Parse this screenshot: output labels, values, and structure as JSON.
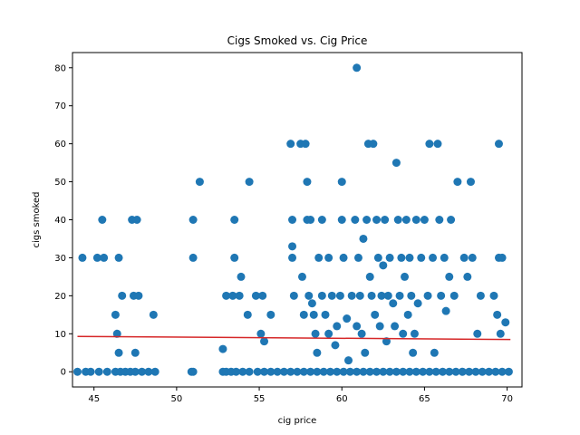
{
  "chart_data": {
    "type": "scatter",
    "title": "Cigs Smoked vs. Cig Price",
    "xlabel": "cig price",
    "ylabel": "cigs smoked",
    "xlim": [
      43.7,
      70.9
    ],
    "ylim": [
      -4,
      84
    ],
    "xticks": [
      45,
      50,
      55,
      60,
      65,
      70
    ],
    "yticks": [
      0,
      10,
      20,
      30,
      40,
      50,
      60,
      70,
      80
    ],
    "grid": false,
    "colors": {
      "points": "#1f77b4",
      "fit_line": "#d62728"
    },
    "series": [
      {
        "points": [
          [
            44.0,
            0
          ],
          [
            44.5,
            0
          ],
          [
            44.8,
            0
          ],
          [
            45.3,
            0
          ],
          [
            45.8,
            0
          ],
          [
            46.3,
            0
          ],
          [
            46.6,
            0
          ],
          [
            46.9,
            0
          ],
          [
            47.2,
            0
          ],
          [
            47.5,
            0
          ],
          [
            47.9,
            0
          ],
          [
            48.3,
            0
          ],
          [
            48.7,
            0
          ],
          [
            50.9,
            0
          ],
          [
            51.0,
            0
          ],
          [
            52.8,
            0
          ],
          [
            53.0,
            0
          ],
          [
            53.3,
            0
          ],
          [
            53.6,
            0
          ],
          [
            54.0,
            0
          ],
          [
            54.4,
            0
          ],
          [
            54.9,
            0
          ],
          [
            55.3,
            0
          ],
          [
            55.7,
            0
          ],
          [
            56.1,
            0
          ],
          [
            56.5,
            0
          ],
          [
            56.9,
            0
          ],
          [
            57.3,
            0
          ],
          [
            57.7,
            0
          ],
          [
            58.1,
            0
          ],
          [
            58.5,
            0
          ],
          [
            58.9,
            0
          ],
          [
            59.3,
            0
          ],
          [
            59.7,
            0
          ],
          [
            60.1,
            0
          ],
          [
            60.5,
            0
          ],
          [
            60.9,
            0
          ],
          [
            61.3,
            0
          ],
          [
            61.7,
            0
          ],
          [
            62.1,
            0
          ],
          [
            62.5,
            0
          ],
          [
            62.9,
            0
          ],
          [
            63.3,
            0
          ],
          [
            63.7,
            0
          ],
          [
            64.1,
            0
          ],
          [
            64.5,
            0
          ],
          [
            64.9,
            0
          ],
          [
            65.3,
            0
          ],
          [
            65.7,
            0
          ],
          [
            66.1,
            0
          ],
          [
            66.5,
            0
          ],
          [
            66.9,
            0
          ],
          [
            67.3,
            0
          ],
          [
            67.7,
            0
          ],
          [
            68.1,
            0
          ],
          [
            68.5,
            0
          ],
          [
            68.9,
            0
          ],
          [
            69.3,
            0
          ],
          [
            69.7,
            0
          ],
          [
            70.1,
            0
          ],
          [
            44.3,
            30
          ],
          [
            45.2,
            30
          ],
          [
            45.6,
            30
          ],
          [
            46.5,
            30
          ],
          [
            45.5,
            40
          ],
          [
            47.3,
            40
          ],
          [
            47.6,
            40
          ],
          [
            46.3,
            15
          ],
          [
            46.4,
            10
          ],
          [
            46.5,
            5
          ],
          [
            46.7,
            20
          ],
          [
            47.4,
            20
          ],
          [
            47.7,
            20
          ],
          [
            47.5,
            5
          ],
          [
            48.6,
            15
          ],
          [
            51.0,
            40
          ],
          [
            51.0,
            30
          ],
          [
            51.4,
            50
          ],
          [
            52.8,
            6
          ],
          [
            53.0,
            20
          ],
          [
            53.4,
            20
          ],
          [
            53.8,
            20
          ],
          [
            53.5,
            40
          ],
          [
            53.5,
            30
          ],
          [
            53.9,
            25
          ],
          [
            54.3,
            15
          ],
          [
            54.4,
            50
          ],
          [
            54.8,
            20
          ],
          [
            55.2,
            20
          ],
          [
            55.1,
            10
          ],
          [
            55.3,
            8
          ],
          [
            55.7,
            15
          ],
          [
            56.9,
            60
          ],
          [
            57.0,
            33
          ],
          [
            57.0,
            40
          ],
          [
            57.0,
            30
          ],
          [
            57.1,
            20
          ],
          [
            57.5,
            60
          ],
          [
            57.8,
            60
          ],
          [
            57.6,
            25
          ],
          [
            57.7,
            15
          ],
          [
            57.9,
            40
          ],
          [
            57.9,
            50
          ],
          [
            58.1,
            40
          ],
          [
            58.0,
            20
          ],
          [
            58.2,
            18
          ],
          [
            58.3,
            15
          ],
          [
            58.4,
            10
          ],
          [
            58.5,
            5
          ],
          [
            58.6,
            30
          ],
          [
            58.8,
            40
          ],
          [
            58.8,
            20
          ],
          [
            59.0,
            15
          ],
          [
            59.2,
            10
          ],
          [
            59.2,
            30
          ],
          [
            59.4,
            20
          ],
          [
            59.6,
            7
          ],
          [
            59.7,
            12
          ],
          [
            59.9,
            20
          ],
          [
            60.0,
            50
          ],
          [
            60.0,
            40
          ],
          [
            60.1,
            30
          ],
          [
            60.3,
            14
          ],
          [
            60.4,
            3
          ],
          [
            60.6,
            20
          ],
          [
            60.8,
            40
          ],
          [
            60.9,
            80
          ],
          [
            60.9,
            12
          ],
          [
            61.0,
            30
          ],
          [
            61.1,
            20
          ],
          [
            61.2,
            10
          ],
          [
            61.3,
            35
          ],
          [
            61.4,
            5
          ],
          [
            61.5,
            40
          ],
          [
            61.6,
            60
          ],
          [
            61.7,
            25
          ],
          [
            61.8,
            20
          ],
          [
            61.9,
            60
          ],
          [
            62.0,
            15
          ],
          [
            62.1,
            40
          ],
          [
            62.2,
            30
          ],
          [
            62.3,
            12
          ],
          [
            62.4,
            20
          ],
          [
            62.5,
            28
          ],
          [
            62.6,
            40
          ],
          [
            62.7,
            8
          ],
          [
            62.8,
            20
          ],
          [
            62.9,
            30
          ],
          [
            63.1,
            18
          ],
          [
            63.2,
            12
          ],
          [
            63.3,
            55
          ],
          [
            63.4,
            40
          ],
          [
            63.5,
            20
          ],
          [
            63.6,
            30
          ],
          [
            63.7,
            10
          ],
          [
            63.8,
            25
          ],
          [
            63.9,
            40
          ],
          [
            64.0,
            15
          ],
          [
            64.1,
            30
          ],
          [
            64.2,
            20
          ],
          [
            64.3,
            5
          ],
          [
            64.4,
            10
          ],
          [
            64.5,
            40
          ],
          [
            64.6,
            18
          ],
          [
            64.8,
            30
          ],
          [
            65.0,
            40
          ],
          [
            65.2,
            20
          ],
          [
            65.3,
            60
          ],
          [
            65.5,
            30
          ],
          [
            65.6,
            5
          ],
          [
            65.8,
            60
          ],
          [
            65.9,
            40
          ],
          [
            66.0,
            20
          ],
          [
            66.2,
            30
          ],
          [
            66.3,
            16
          ],
          [
            66.5,
            25
          ],
          [
            66.6,
            40
          ],
          [
            66.8,
            20
          ],
          [
            67.0,
            50
          ],
          [
            67.4,
            30
          ],
          [
            67.6,
            25
          ],
          [
            67.8,
            50
          ],
          [
            67.9,
            30
          ],
          [
            68.2,
            10
          ],
          [
            68.4,
            20
          ],
          [
            69.2,
            20
          ],
          [
            69.4,
            15
          ],
          [
            69.5,
            60
          ],
          [
            69.5,
            30
          ],
          [
            69.7,
            30
          ],
          [
            69.6,
            10
          ],
          [
            69.9,
            13
          ]
        ]
      }
    ],
    "fit_line": {
      "x": [
        44.0,
        70.2
      ],
      "y": [
        9.3,
        8.5
      ]
    }
  }
}
